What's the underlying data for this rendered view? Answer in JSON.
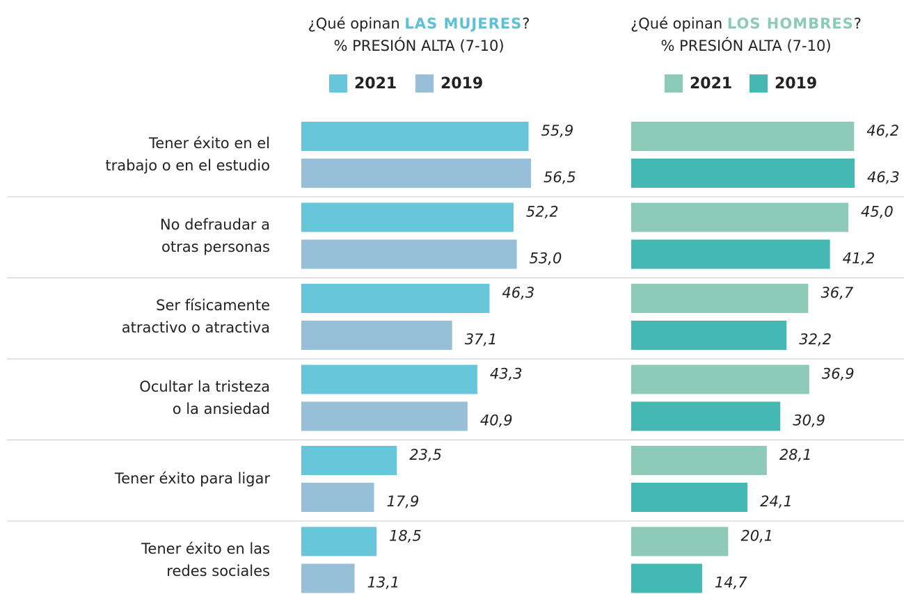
{
  "chart_data": [
    {
      "type": "bar",
      "orientation": "horizontal",
      "title_prefix": "¿Qué opinan ",
      "title_highlight": "LAS MUJERES",
      "title_suffix": "?",
      "title_highlight_color": "#5cc0d6",
      "subtitle": "% PRESIÓN ALTA (7-10)",
      "categories": [
        "Tener éxito en el\ntrabajo o en el estudio",
        "No defraudar a\notras personas",
        "Ser físicamente\natractivo o atractiva",
        "Ocultar la tristeza\no la ansiedad",
        "Tener éxito para ligar",
        "Tener éxito en las\nredes sociales"
      ],
      "series": [
        {
          "name": "2021",
          "color": "#68c6da",
          "values": [
            55.9,
            52.2,
            46.3,
            43.3,
            23.5,
            18.5
          ],
          "value_labels": [
            "55,9",
            "52,2",
            "46,3",
            "43,3",
            "23,5",
            "18,5"
          ]
        },
        {
          "name": "2019",
          "color": "#97c0d8",
          "values": [
            56.5,
            53.0,
            37.1,
            40.9,
            17.9,
            13.1
          ],
          "value_labels": [
            "56,5",
            "53,0",
            "37,1",
            "40,9",
            "17,9",
            "13,1"
          ]
        }
      ]
    },
    {
      "type": "bar",
      "orientation": "horizontal",
      "title_prefix": "¿Qué opinan ",
      "title_highlight": "LOS HOMBRES",
      "title_suffix": "?",
      "title_highlight_color": "#8dcbb8",
      "subtitle": "% PRESIÓN ALTA (7-10)",
      "series": [
        {
          "name": "2021",
          "color": "#8dcbb8",
          "values": [
            46.2,
            45.0,
            36.7,
            36.9,
            28.1,
            20.1
          ],
          "value_labels": [
            "46,2",
            "45,0",
            "36,7",
            "36,9",
            "28,1",
            "20,1"
          ]
        },
        {
          "name": "2019",
          "color": "#45b8b4",
          "values": [
            46.3,
            41.2,
            32.2,
            30.9,
            24.1,
            14.7
          ],
          "value_labels": [
            "46,3",
            "41,2",
            "32,2",
            "30,9",
            "24,1",
            "14,7"
          ]
        }
      ]
    }
  ]
}
